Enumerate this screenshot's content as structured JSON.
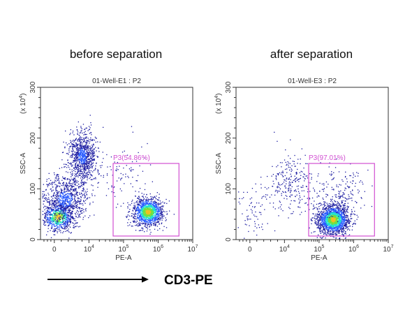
{
  "chart_data": [
    {
      "type": "scatter",
      "condition_label": "before separation",
      "title": "01-Well-E1 : P2",
      "xlabel": "PE-A",
      "ylabel": "SSC-A",
      "y_multiplier": "(x 10",
      "y_multiplier_exp": "4",
      "y_multiplier_close": ")",
      "x_scale": "biexponential",
      "x_ticks": [
        {
          "label": "0",
          "exp": ""
        },
        {
          "label": "10",
          "exp": "4"
        },
        {
          "label": "10",
          "exp": "5"
        },
        {
          "label": "10",
          "exp": "6"
        },
        {
          "label": "10",
          "exp": "7"
        }
      ],
      "x_tick_values": [
        0,
        10000,
        100000,
        1000000,
        10000000
      ],
      "ylim": [
        0,
        300
      ],
      "y_ticks": [
        "0",
        "100",
        "200",
        "300"
      ],
      "y_tick_values": [
        0,
        100,
        200,
        300
      ],
      "gate": {
        "name": "P3",
        "label": "P3(54.86%)",
        "percent": 54.86,
        "pe_range": [
          50000,
          4000000
        ],
        "ssc_range": [
          7,
          150
        ],
        "color": "#d24fd2"
      },
      "populations": [
        {
          "pe_center": 1000,
          "ssc_center": 45,
          "count": 700,
          "dense": true
        },
        {
          "pe_center": 3000,
          "ssc_center": 80,
          "count": 900,
          "dense": false
        },
        {
          "pe_center": 8000,
          "ssc_center": 165,
          "count": 900,
          "dense": false
        },
        {
          "pe_center": 500000,
          "ssc_center": 55,
          "count": 1300,
          "dense": true
        },
        {
          "pe_center": 100000,
          "ssc_center": 130,
          "count": 80,
          "dense": false
        }
      ]
    },
    {
      "type": "scatter",
      "condition_label": "after separation",
      "title": "01-Well-E3 : P2",
      "xlabel": "PE-A",
      "ylabel": "SSC-A",
      "y_multiplier": "(x 10",
      "y_multiplier_exp": "4",
      "y_multiplier_close": ")",
      "x_scale": "biexponential",
      "x_ticks": [
        {
          "label": "0",
          "exp": ""
        },
        {
          "label": "10",
          "exp": "4"
        },
        {
          "label": "10",
          "exp": "5"
        },
        {
          "label": "10",
          "exp": "6"
        },
        {
          "label": "10",
          "exp": "7"
        }
      ],
      "x_tick_values": [
        0,
        10000,
        100000,
        1000000,
        10000000
      ],
      "ylim": [
        0,
        300
      ],
      "y_ticks": [
        "0",
        "100",
        "200",
        "300"
      ],
      "y_tick_values": [
        0,
        100,
        200,
        300
      ],
      "gate": {
        "name": "P3",
        "label": "P3(97.01%)",
        "percent": 97.01,
        "pe_range": [
          50000,
          4000000
        ],
        "ssc_range": [
          7,
          150
        ],
        "color": "#d24fd2"
      },
      "populations": [
        {
          "pe_center": 250000,
          "ssc_center": 40,
          "count": 1800,
          "dense": true
        },
        {
          "pe_center": 400000,
          "ssc_center": 90,
          "count": 200,
          "dense": false
        },
        {
          "pe_center": 15000,
          "ssc_center": 110,
          "count": 260,
          "dense": false
        },
        {
          "pe_center": 1000,
          "ssc_center": 50,
          "count": 80,
          "dense": false
        }
      ]
    }
  ],
  "annotation": {
    "marker_label": "CD3-PE"
  },
  "colors": {
    "density_low": "#1a1aa0",
    "density_mid": "#2a5cff",
    "density_high": "#20e0d0",
    "density_peak": "#70e040",
    "density_max": "#f0c020",
    "gate": "#d24fd2"
  }
}
